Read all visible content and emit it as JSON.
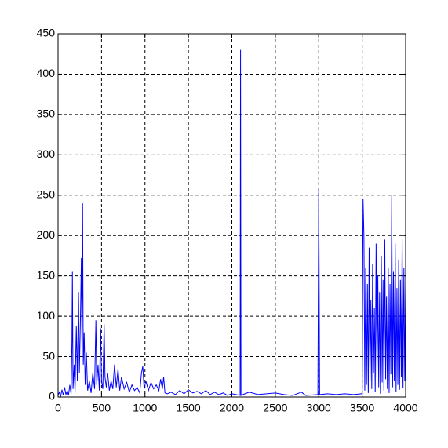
{
  "chart_data": {
    "type": "line",
    "x": [
      0,
      15,
      30,
      45,
      60,
      75,
      90,
      105,
      120,
      135,
      150,
      160,
      165,
      172,
      185,
      195,
      210,
      222,
      235,
      245,
      258,
      268,
      275,
      282,
      290,
      300,
      312,
      325,
      340,
      360,
      380,
      400,
      420,
      435,
      445,
      460,
      475,
      490,
      500,
      515,
      530,
      540,
      555,
      570,
      590,
      610,
      630,
      650,
      670,
      690,
      710,
      730,
      760,
      790,
      820,
      850,
      880,
      910,
      940,
      960,
      975,
      990,
      1010,
      1040,
      1070,
      1100,
      1130,
      1160,
      1180,
      1200,
      1215,
      1230,
      1260,
      1300,
      1350,
      1400,
      1450,
      1500,
      1550,
      1600,
      1650,
      1700,
      1750,
      1800,
      1850,
      1900,
      1950,
      2000,
      2050,
      2095,
      2100,
      2105,
      2150,
      2200,
      2300,
      2400,
      2500,
      2600,
      2700,
      2800,
      2850,
      2990,
      3000,
      3010,
      3100,
      3200,
      3300,
      3400,
      3490,
      3500,
      3510,
      3520,
      3530,
      3540,
      3550,
      3560,
      3570,
      3580,
      3590,
      3600,
      3610,
      3620,
      3630,
      3640,
      3650,
      3660,
      3670,
      3680,
      3690,
      3700,
      3710,
      3720,
      3730,
      3740,
      3750,
      3760,
      3770,
      3780,
      3790,
      3800,
      3810,
      3820,
      3830,
      3840,
      3850,
      3860,
      3870,
      3880,
      3890,
      3900,
      3910,
      3920,
      3930,
      3940,
      3950,
      3960,
      3970,
      3980,
      3990,
      4000
    ],
    "series": [
      {
        "color": "#0000ff",
        "values": [
          2,
          6,
          1,
          9,
          2,
          12,
          3,
          8,
          2,
          15,
          4,
          70,
          155,
          10,
          40,
          5,
          88,
          20,
          130,
          30,
          100,
          172,
          60,
          240,
          40,
          80,
          15,
          55,
          8,
          20,
          5,
          30,
          10,
          95,
          15,
          40,
          8,
          85,
          20,
          10,
          90,
          25,
          12,
          30,
          8,
          20,
          10,
          40,
          12,
          35,
          8,
          25,
          10,
          18,
          6,
          15,
          8,
          12,
          5,
          30,
          38,
          10,
          20,
          8,
          18,
          10,
          15,
          8,
          22,
          10,
          25,
          5,
          4,
          6,
          3,
          8,
          4,
          9,
          5,
          7,
          4,
          8,
          3,
          6,
          3,
          5,
          2,
          4,
          3,
          2,
          430,
          2,
          4,
          6,
          3,
          4,
          5,
          3,
          2,
          6,
          2,
          3,
          258,
          3,
          4,
          3,
          4,
          3,
          4,
          5,
          245,
          200,
          8,
          160,
          15,
          140,
          5,
          185,
          20,
          120,
          10,
          165,
          30,
          110,
          6,
          190,
          25,
          150,
          12,
          130,
          4,
          175,
          18,
          145,
          8,
          195,
          22,
          125,
          10,
          160,
          5,
          140,
          28,
          250,
          12,
          155,
          20,
          190,
          6,
          135,
          15,
          170,
          9,
          145,
          25,
          195,
          11,
          160,
          20,
          140
        ]
      }
    ],
    "xlim": [
      0,
      4000
    ],
    "ylim": [
      0,
      450
    ],
    "xticks": [
      0,
      500,
      1000,
      1500,
      2000,
      2500,
      3000,
      3500,
      4000
    ],
    "yticks": [
      0,
      50,
      100,
      150,
      200,
      250,
      300,
      350,
      400,
      450
    ],
    "grid": true
  }
}
